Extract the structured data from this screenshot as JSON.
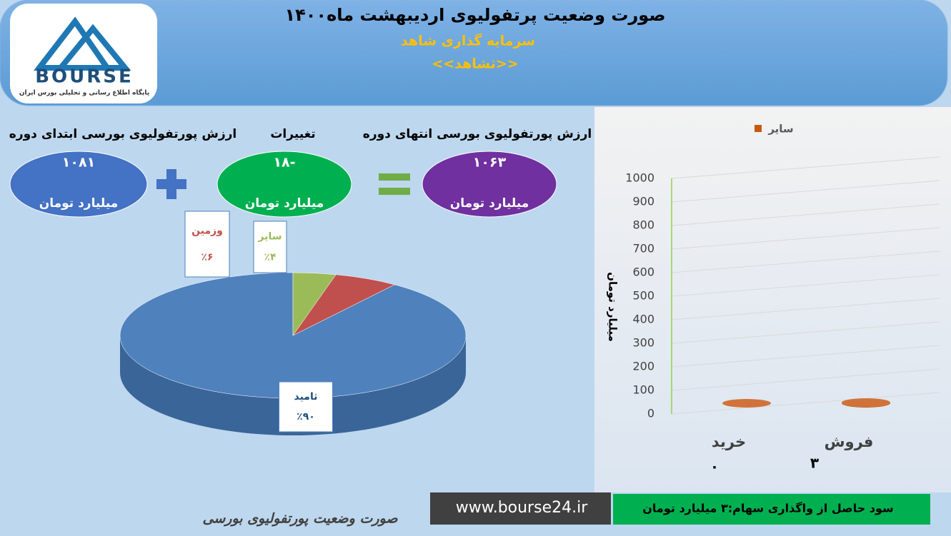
{
  "header": {
    "title": "صورت وضعیت پرتفولیوی اردیبهشت ماه۱۴۰۰",
    "subtitle": "سرمایه گذاری شاهد",
    "symbol": "<<ثشاهد>>",
    "logo_text": "BOURSE",
    "logo_caption": "پایگاه اطلاع رسانی و تحلیلی بورس ایران"
  },
  "summary": [
    {
      "label": "ارزش پورتفولیوی بورسی ابتدای دوره",
      "value": "۱۰۸۱",
      "unit": "میلیارد تومان"
    },
    {
      "label": "تغییرات",
      "value": "-۱۸",
      "unit": "میلیارد تومان"
    },
    {
      "label": "ارزش پورتفولیوی بورسی انتهای دوره",
      "value": "۱۰۶۳",
      "unit": "میلیارد تومان"
    }
  ],
  "chart_data": [
    {
      "type": "pie",
      "categories": [
        "ثامید",
        "وزمین",
        "سایر"
      ],
      "values": [
        90,
        6,
        4
      ],
      "value_labels": [
        "٪۹۰",
        "٪۶",
        "٪۴"
      ],
      "colors": [
        "#4f81bd",
        "#c0504d",
        "#9bbb59"
      ]
    },
    {
      "type": "bar",
      "categories": [
        "خرید",
        "فروش"
      ],
      "series": [
        {
          "name": "سایر",
          "color": "#c55a11",
          "values": [
            0,
            3
          ],
          "value_labels": [
            "۰",
            "۳"
          ]
        }
      ],
      "ylabel": "میلیارد تومان",
      "ylim": [
        0,
        1000
      ],
      "yticks": [
        0,
        100,
        200,
        300,
        400,
        500,
        600,
        700,
        800,
        900,
        1000
      ],
      "grid": true
    }
  ],
  "footer": {
    "caption": "صورت وضعیت پورتفولیوی بورسی",
    "website": "www.bourse24.ir",
    "note": "سود حاصل از واگذاری سهام:۳ میلیارد تومان"
  }
}
